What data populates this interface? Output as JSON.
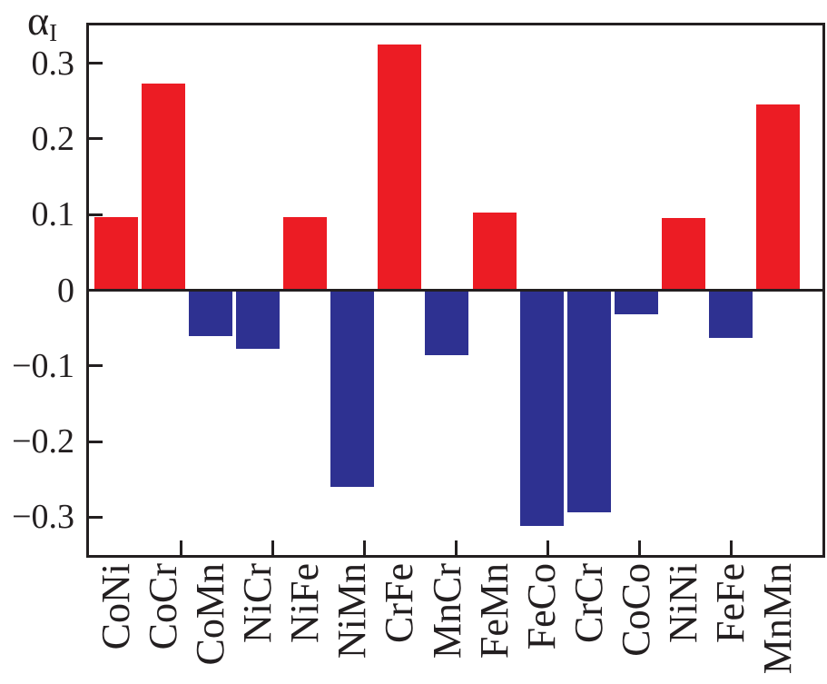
{
  "figure": {
    "ylabel_base": "α",
    "ylabel_sub": "I"
  },
  "chart_data": {
    "type": "bar",
    "title": "",
    "ylabel": "α_I",
    "xlabel": "",
    "categories": [
      "CoNi",
      "CoCr",
      "CoMn",
      "NiCr",
      "NiFe",
      "NiMn",
      "CrFe",
      "MnCr",
      "FeMn",
      "FeCo",
      "CrCr",
      "CoCo",
      "NiNi",
      "FeFe",
      "MnMn"
    ],
    "values": [
      0.097,
      0.273,
      -0.061,
      -0.078,
      0.097,
      -0.26,
      0.325,
      -0.086,
      0.103,
      -0.312,
      -0.293,
      -0.032,
      0.096,
      -0.063,
      0.246
    ],
    "ylim": [
      -0.35,
      0.35
    ],
    "yticks": [
      {
        "value": 0.3,
        "label": "0.3"
      },
      {
        "value": 0.2,
        "label": "0.2"
      },
      {
        "value": 0.1,
        "label": "0.1"
      },
      {
        "value": 0,
        "label": "0"
      },
      {
        "value": -0.1,
        "label": "−0.1"
      },
      {
        "value": -0.2,
        "label": "−0.2"
      },
      {
        "value": -0.3,
        "label": "−0.3"
      }
    ],
    "x_axis_divisions": 8,
    "grid": false,
    "legend": null,
    "layout": {
      "bar_color_rule": "positive=red, negative=blue"
    },
    "colors": {
      "positive": "#ec1c24",
      "negative": "#2e3191",
      "axis": "#231f20",
      "background": "#ffffff"
    }
  }
}
